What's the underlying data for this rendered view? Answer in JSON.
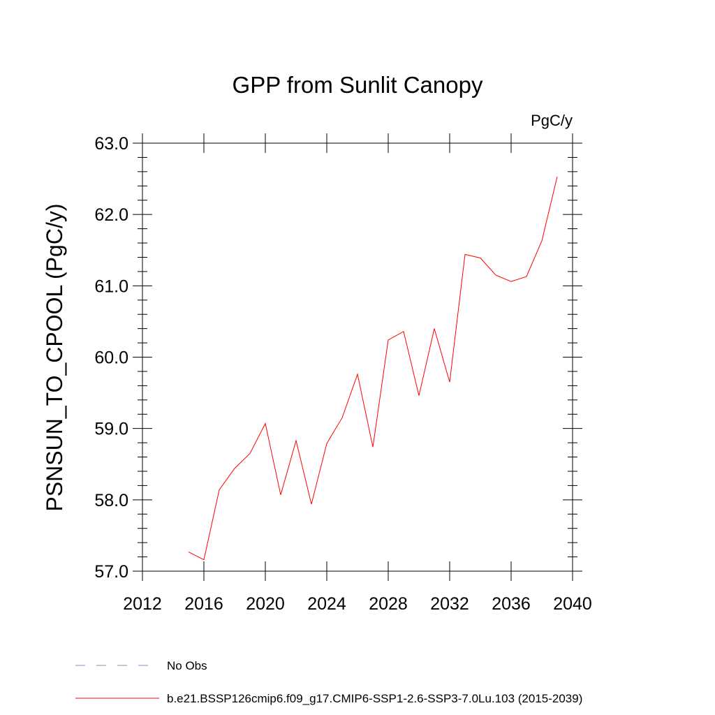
{
  "chart_data": {
    "type": "line",
    "title": "GPP from Sunlit Canopy",
    "units": "PgC/y",
    "ylabel": "PSNSUN_TO_CPOOL  (PgC/y)",
    "xlabel": "",
    "xlim": [
      2012,
      2040
    ],
    "ylim": [
      57.0,
      63.0
    ],
    "x_ticks": [
      2012,
      2016,
      2020,
      2024,
      2028,
      2032,
      2036,
      2040
    ],
    "x_tick_labels": [
      "2012",
      "2016",
      "2020",
      "2024",
      "2028",
      "2032",
      "2036",
      "2040"
    ],
    "y_ticks": [
      57.0,
      58.0,
      59.0,
      60.0,
      61.0,
      62.0,
      63.0
    ],
    "y_tick_labels": [
      "57.0",
      "58.0",
      "59.0",
      "60.0",
      "61.0",
      "62.0",
      "63.0"
    ],
    "series": [
      {
        "name": "b.e21.BSSP126cmip6.f09_g17.CMIP6-SSP1-2.6-SSP3-7.0Lu.103 (2015-2039)",
        "color": "#ff0000",
        "x": [
          2015,
          2016,
          2017,
          2018,
          2019,
          2020,
          2021,
          2022,
          2023,
          2024,
          2025,
          2026,
          2027,
          2028,
          2029,
          2030,
          2031,
          2032,
          2033,
          2034,
          2035,
          2036,
          2037,
          2038,
          2039
        ],
        "y": [
          57.27,
          57.16,
          58.14,
          58.44,
          58.65,
          59.07,
          58.07,
          58.83,
          57.94,
          58.79,
          59.15,
          59.76,
          58.74,
          60.24,
          60.36,
          59.46,
          60.4,
          59.65,
          61.44,
          61.39,
          61.15,
          61.06,
          61.13,
          61.63,
          62.53
        ]
      }
    ],
    "legend": [
      {
        "label": "No Obs",
        "style": "dashed",
        "color": "#8f86c8"
      },
      {
        "label": "b.e21.BSSP126cmip6.f09_g17.CMIP6-SSP1-2.6-SSP3-7.0Lu.103 (2015-2039)",
        "style": "solid",
        "color": "#ff0000"
      }
    ]
  }
}
